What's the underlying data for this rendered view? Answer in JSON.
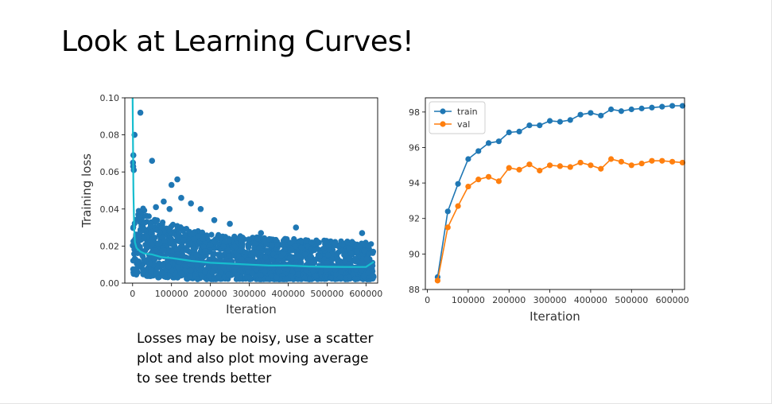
{
  "slide": {
    "title": "Look at Learning Curves!",
    "caption": "Losses may be noisy, use a scatter plot and also plot moving average to see trends better"
  },
  "chart_data": [
    {
      "type": "scatter",
      "xlabel": "Iteration",
      "ylabel": "Training loss",
      "xlim": [
        -20000,
        630000
      ],
      "ylim": [
        0.0,
        0.1
      ],
      "xticks": [
        "0",
        "100000",
        "200000",
        "300000",
        "400000",
        "500000",
        "600000"
      ],
      "yticks": [
        "0.00",
        "0.02",
        "0.04",
        "0.06",
        "0.08",
        "0.10"
      ],
      "grid": false,
      "colors": {
        "scatter": "#1f77b4",
        "moving_average": "#17becf"
      },
      "outliers": [
        {
          "x": 2000,
          "y": 0.069
        },
        {
          "x": 1000,
          "y": 0.065
        },
        {
          "x": 1500,
          "y": 0.063
        },
        {
          "x": 3000,
          "y": 0.061
        },
        {
          "x": 5000,
          "y": 0.08
        },
        {
          "x": 20000,
          "y": 0.092
        },
        {
          "x": 50000,
          "y": 0.066
        },
        {
          "x": 115000,
          "y": 0.056
        },
        {
          "x": 100000,
          "y": 0.053
        },
        {
          "x": 80000,
          "y": 0.044
        },
        {
          "x": 125000,
          "y": 0.046
        },
        {
          "x": 150000,
          "y": 0.043
        },
        {
          "x": 175000,
          "y": 0.04
        },
        {
          "x": 60000,
          "y": 0.041
        },
        {
          "x": 95000,
          "y": 0.04
        },
        {
          "x": 420000,
          "y": 0.03
        },
        {
          "x": 590000,
          "y": 0.027
        },
        {
          "x": 210000,
          "y": 0.034
        },
        {
          "x": 250000,
          "y": 0.032
        },
        {
          "x": 330000,
          "y": 0.027
        }
      ],
      "moving_average": {
        "x": [
          0,
          2000,
          4000,
          6000,
          10000,
          15000,
          20000,
          30000,
          50000,
          75000,
          100000,
          150000,
          200000,
          250000,
          300000,
          350000,
          400000,
          450000,
          500000,
          550000,
          600000,
          620000
        ],
        "y": [
          0.1,
          0.05,
          0.03,
          0.022,
          0.019,
          0.018,
          0.017,
          0.016,
          0.0155,
          0.014,
          0.0135,
          0.012,
          0.011,
          0.0105,
          0.01,
          0.0095,
          0.0095,
          0.009,
          0.0088,
          0.0087,
          0.0087,
          0.0115
        ]
      },
      "noise_band": {
        "x": [
          0,
          10000,
          30000,
          60000,
          100000,
          150000,
          200000,
          300000,
          400000,
          500000,
          620000
        ],
        "upper": [
          0.05,
          0.045,
          0.04,
          0.035,
          0.032,
          0.029,
          0.027,
          0.025,
          0.024,
          0.023,
          0.022
        ],
        "lower": [
          0.005,
          0.004,
          0.004,
          0.003,
          0.003,
          0.002,
          0.002,
          0.002,
          0.002,
          0.002,
          0.002
        ]
      }
    },
    {
      "type": "line",
      "xlabel": "Iteration",
      "ylabel": "",
      "xlim": [
        -5000,
        630000
      ],
      "ylim": [
        88,
        98.8
      ],
      "xticks": [
        "0",
        "100000",
        "200000",
        "300000",
        "400000",
        "500000",
        "600000"
      ],
      "yticks": [
        "88",
        "90",
        "92",
        "94",
        "96",
        "98"
      ],
      "legend": "top-left",
      "grid": false,
      "x": [
        25000,
        50000,
        75000,
        100000,
        125000,
        150000,
        175000,
        200000,
        225000,
        250000,
        275000,
        300000,
        325000,
        350000,
        375000,
        400000,
        425000,
        450000,
        475000,
        500000,
        525000,
        550000,
        575000,
        600000,
        625000
      ],
      "series": [
        {
          "name": "train",
          "color": "#1f77b4",
          "values": [
            88.7,
            92.4,
            93.95,
            95.35,
            95.8,
            96.25,
            96.35,
            96.85,
            96.9,
            97.25,
            97.25,
            97.5,
            97.45,
            97.55,
            97.85,
            97.95,
            97.8,
            98.15,
            98.05,
            98.15,
            98.2,
            98.25,
            98.3,
            98.35,
            98.35
          ]
        },
        {
          "name": "val",
          "color": "#ff7f0e",
          "values": [
            88.5,
            91.5,
            92.7,
            93.8,
            94.2,
            94.35,
            94.1,
            94.85,
            94.75,
            95.05,
            94.7,
            95.0,
            94.95,
            94.9,
            95.15,
            95.0,
            94.8,
            95.35,
            95.2,
            95.0,
            95.1,
            95.25,
            95.25,
            95.2,
            95.15
          ]
        }
      ]
    }
  ]
}
